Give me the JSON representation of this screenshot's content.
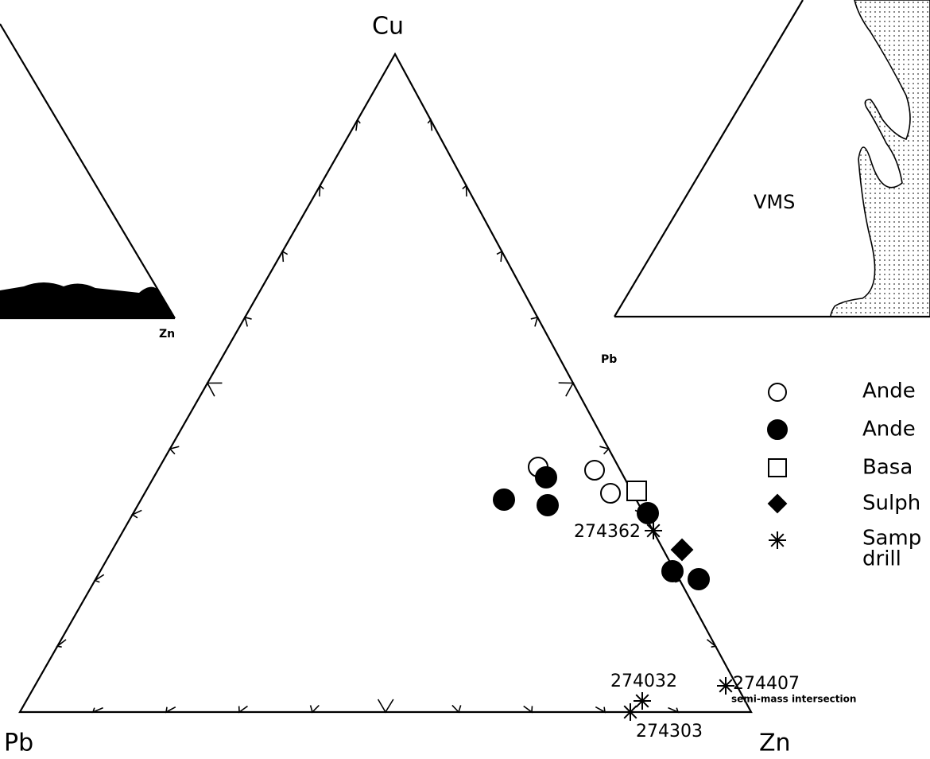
{
  "diagram": {
    "main_triangle": {
      "apex_top": "Cu",
      "apex_left": "Pb",
      "apex_right": "Zn"
    },
    "left_inset": {
      "apex_right": "Zn"
    },
    "right_inset": {
      "apex_left": "Pb",
      "field_label": "VMS"
    },
    "sample_labels": [
      "274362",
      "274032",
      "274407",
      "274303"
    ],
    "annotation": "semi-mass intersection",
    "legend": [
      "Ande",
      "Ande",
      "Basa",
      "Sulph",
      "Samp",
      "drill"
    ]
  }
}
